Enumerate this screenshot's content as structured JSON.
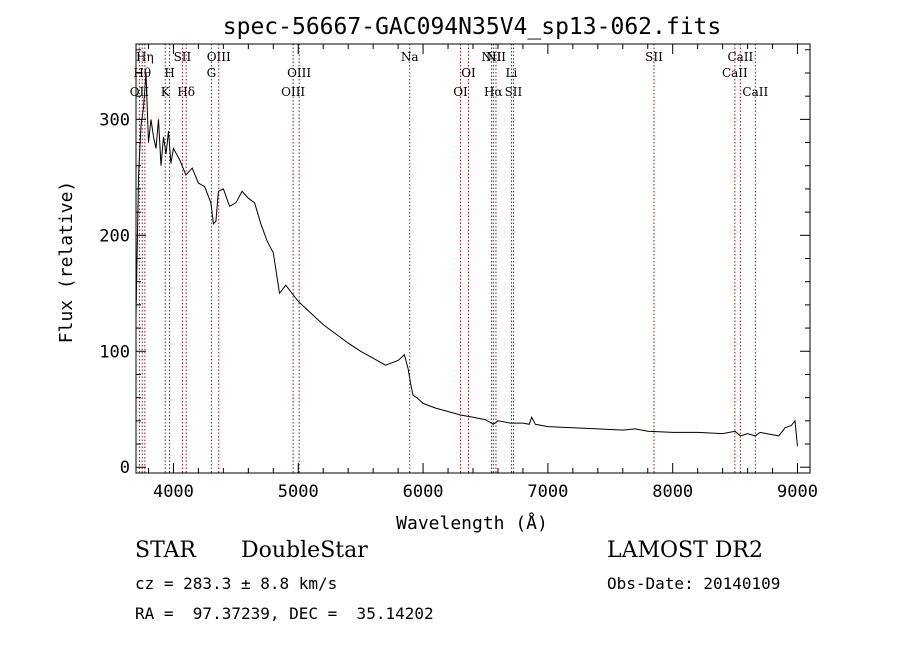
{
  "chart_data": {
    "type": "line",
    "title": "spec-56667-GAC094N35V4_sp13-062.fits",
    "xlabel": "Wavelength (Å)",
    "ylabel": "Flux (relative)",
    "xlim": [
      3700,
      9100
    ],
    "ylim": [
      -5,
      365
    ],
    "x_ticks": [
      4000,
      5000,
      6000,
      7000,
      8000,
      9000
    ],
    "y_ticks": [
      0,
      100,
      200,
      300
    ],
    "grid": false,
    "line_color": "#000000",
    "marker_color": "#8b1a1a",
    "series": [
      {
        "x": [
          3700,
          3720,
          3740,
          3760,
          3780,
          3800,
          3820,
          3840,
          3860,
          3880,
          3900,
          3920,
          3940,
          3960,
          3980,
          4000,
          4050,
          4100,
          4150,
          4200,
          4250,
          4300,
          4320,
          4340,
          4360,
          4400,
          4450,
          4500,
          4550,
          4600,
          4650,
          4700,
          4750,
          4800,
          4850,
          4900,
          4950,
          5000,
          5100,
          5200,
          5300,
          5400,
          5500,
          5600,
          5700,
          5800,
          5850,
          5880,
          5900,
          5920,
          5950,
          6000,
          6100,
          6200,
          6300,
          6400,
          6500,
          6563,
          6600,
          6700,
          6800,
          6850,
          6870,
          6900,
          7000,
          7200,
          7400,
          7600,
          7700,
          7800,
          8000,
          8200,
          8400,
          8500,
          8542,
          8600,
          8662,
          8700,
          8800,
          8850,
          8900,
          8950,
          8980,
          9000
        ],
        "y": [
          130,
          250,
          295,
          310,
          340,
          280,
          300,
          285,
          275,
          300,
          260,
          285,
          270,
          290,
          262,
          275,
          265,
          252,
          258,
          245,
          242,
          228,
          210,
          212,
          238,
          240,
          225,
          228,
          238,
          232,
          228,
          210,
          195,
          185,
          150,
          157,
          150,
          143,
          133,
          123,
          115,
          107,
          100,
          94,
          88,
          92,
          97,
          85,
          72,
          62,
          60,
          55,
          51,
          48,
          45,
          43,
          41,
          37,
          40,
          38,
          38,
          37,
          43,
          37,
          35,
          34,
          33,
          32,
          33,
          31,
          30,
          30,
          29,
          31,
          27,
          29,
          27,
          30,
          28,
          27,
          34,
          36,
          40,
          18
        ]
      }
    ],
    "line_markers": [
      {
        "x": 3727,
        "label": "OII",
        "row": 3
      },
      {
        "x": 3750,
        "label": "Hθ",
        "row": 2
      },
      {
        "x": 3771,
        "label": "Hη",
        "row": 1
      },
      {
        "x": 3934,
        "label": "K",
        "row": 3
      },
      {
        "x": 3969,
        "label": "H",
        "row": 2
      },
      {
        "x": 4072,
        "label": "SII",
        "row": 1
      },
      {
        "x": 4102,
        "label": "Hδ",
        "row": 3
      },
      {
        "x": 4304,
        "label": "G",
        "row": 2
      },
      {
        "x": 4363,
        "label": "OIII",
        "row": 1
      },
      {
        "x": 4959,
        "label": "OIII",
        "row": 3
      },
      {
        "x": 5007,
        "label": "OIII",
        "row": 2
      },
      {
        "x": 5893,
        "label": "Na",
        "row": 1
      },
      {
        "x": 6300,
        "label": "OI",
        "row": 3
      },
      {
        "x": 6364,
        "label": "OI",
        "row": 2
      },
      {
        "x": 6548,
        "label": "NII",
        "row": 1
      },
      {
        "x": 6563,
        "label": "Hα",
        "row": 3
      },
      {
        "x": 6584,
        "label": "NII",
        "row": 1
      },
      {
        "x": 6708,
        "label": "Li",
        "row": 2
      },
      {
        "x": 6724,
        "label": "SII",
        "row": 3
      },
      {
        "x": 7850,
        "label": "SII",
        "row": 1
      },
      {
        "x": 8498,
        "label": "CaII",
        "row": 2
      },
      {
        "x": 8542,
        "label": "CaII",
        "row": 1
      },
      {
        "x": 8662,
        "label": "CaII",
        "row": 3
      }
    ]
  },
  "info": {
    "class_label": "STAR",
    "subclass_label": "DoubleStar",
    "survey_label": "LAMOST DR2",
    "cz_line": "cz = 283.3 ± 8.8 km/s",
    "obs_date_line": "Obs-Date: 20140109",
    "coords_line": "RA =  97.37239, DEC =  35.14202"
  }
}
